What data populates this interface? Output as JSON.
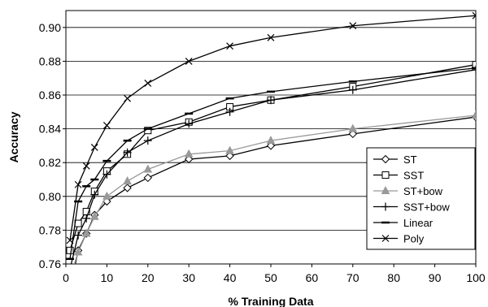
{
  "chart_data": {
    "type": "line",
    "title": "",
    "xlabel": "% Training Data",
    "ylabel": "Accuracy",
    "xlim": [
      0,
      100
    ],
    "ylim": [
      0.76,
      0.91
    ],
    "xticks": [
      "0",
      "10",
      "20",
      "30",
      "40",
      "50",
      "60",
      "70",
      "80",
      "90",
      "100"
    ],
    "yticks": [
      "0.76",
      "0.78",
      "0.80",
      "0.82",
      "0.84",
      "0.86",
      "0.88",
      "0.90"
    ],
    "grid": "horizontal",
    "legend_position": "lower-right",
    "series": [
      {
        "name": "ST",
        "marker": "diamond",
        "color": "#000000",
        "x": [
          1,
          3,
          5,
          7,
          10,
          15,
          20,
          30,
          40,
          50,
          70,
          100
        ],
        "y": [
          0.745,
          0.768,
          0.778,
          0.789,
          0.797,
          0.805,
          0.811,
          0.822,
          0.824,
          0.83,
          0.837,
          0.847
        ]
      },
      {
        "name": "SST",
        "marker": "square",
        "color": "#000000",
        "x": [
          1,
          3,
          5,
          7,
          10,
          15,
          20,
          30,
          40,
          50,
          70,
          100
        ],
        "y": [
          0.768,
          0.784,
          0.791,
          0.803,
          0.815,
          0.825,
          0.839,
          0.844,
          0.853,
          0.857,
          0.865,
          0.878
        ]
      },
      {
        "name": "ST+bow",
        "marker": "triangle",
        "color": "#999999",
        "x": [
          1,
          3,
          5,
          7,
          10,
          15,
          20,
          30,
          40,
          50,
          70,
          100
        ],
        "y": [
          0.752,
          0.767,
          0.778,
          0.788,
          0.8,
          0.809,
          0.816,
          0.825,
          0.827,
          0.833,
          0.84,
          0.848
        ]
      },
      {
        "name": "SST+bow",
        "marker": "plus",
        "color": "#000000",
        "x": [
          1,
          3,
          5,
          7,
          10,
          15,
          20,
          30,
          40,
          50,
          70,
          100
        ],
        "y": [
          0.757,
          0.777,
          0.787,
          0.801,
          0.813,
          0.826,
          0.833,
          0.843,
          0.85,
          0.857,
          0.863,
          0.875
        ]
      },
      {
        "name": "Linear",
        "marker": "dash",
        "color": "#000000",
        "x": [
          1,
          3,
          5,
          7,
          10,
          15,
          20,
          30,
          40,
          50,
          70,
          100
        ],
        "y": [
          0.763,
          0.797,
          0.806,
          0.81,
          0.821,
          0.833,
          0.84,
          0.849,
          0.858,
          0.862,
          0.868,
          0.876
        ]
      },
      {
        "name": "Poly",
        "marker": "x",
        "color": "#000000",
        "x": [
          1,
          3,
          5,
          7,
          10,
          15,
          20,
          30,
          40,
          50,
          70,
          100
        ],
        "y": [
          0.774,
          0.807,
          0.818,
          0.829,
          0.842,
          0.858,
          0.867,
          0.88,
          0.889,
          0.894,
          0.901,
          0.907
        ]
      }
    ]
  }
}
